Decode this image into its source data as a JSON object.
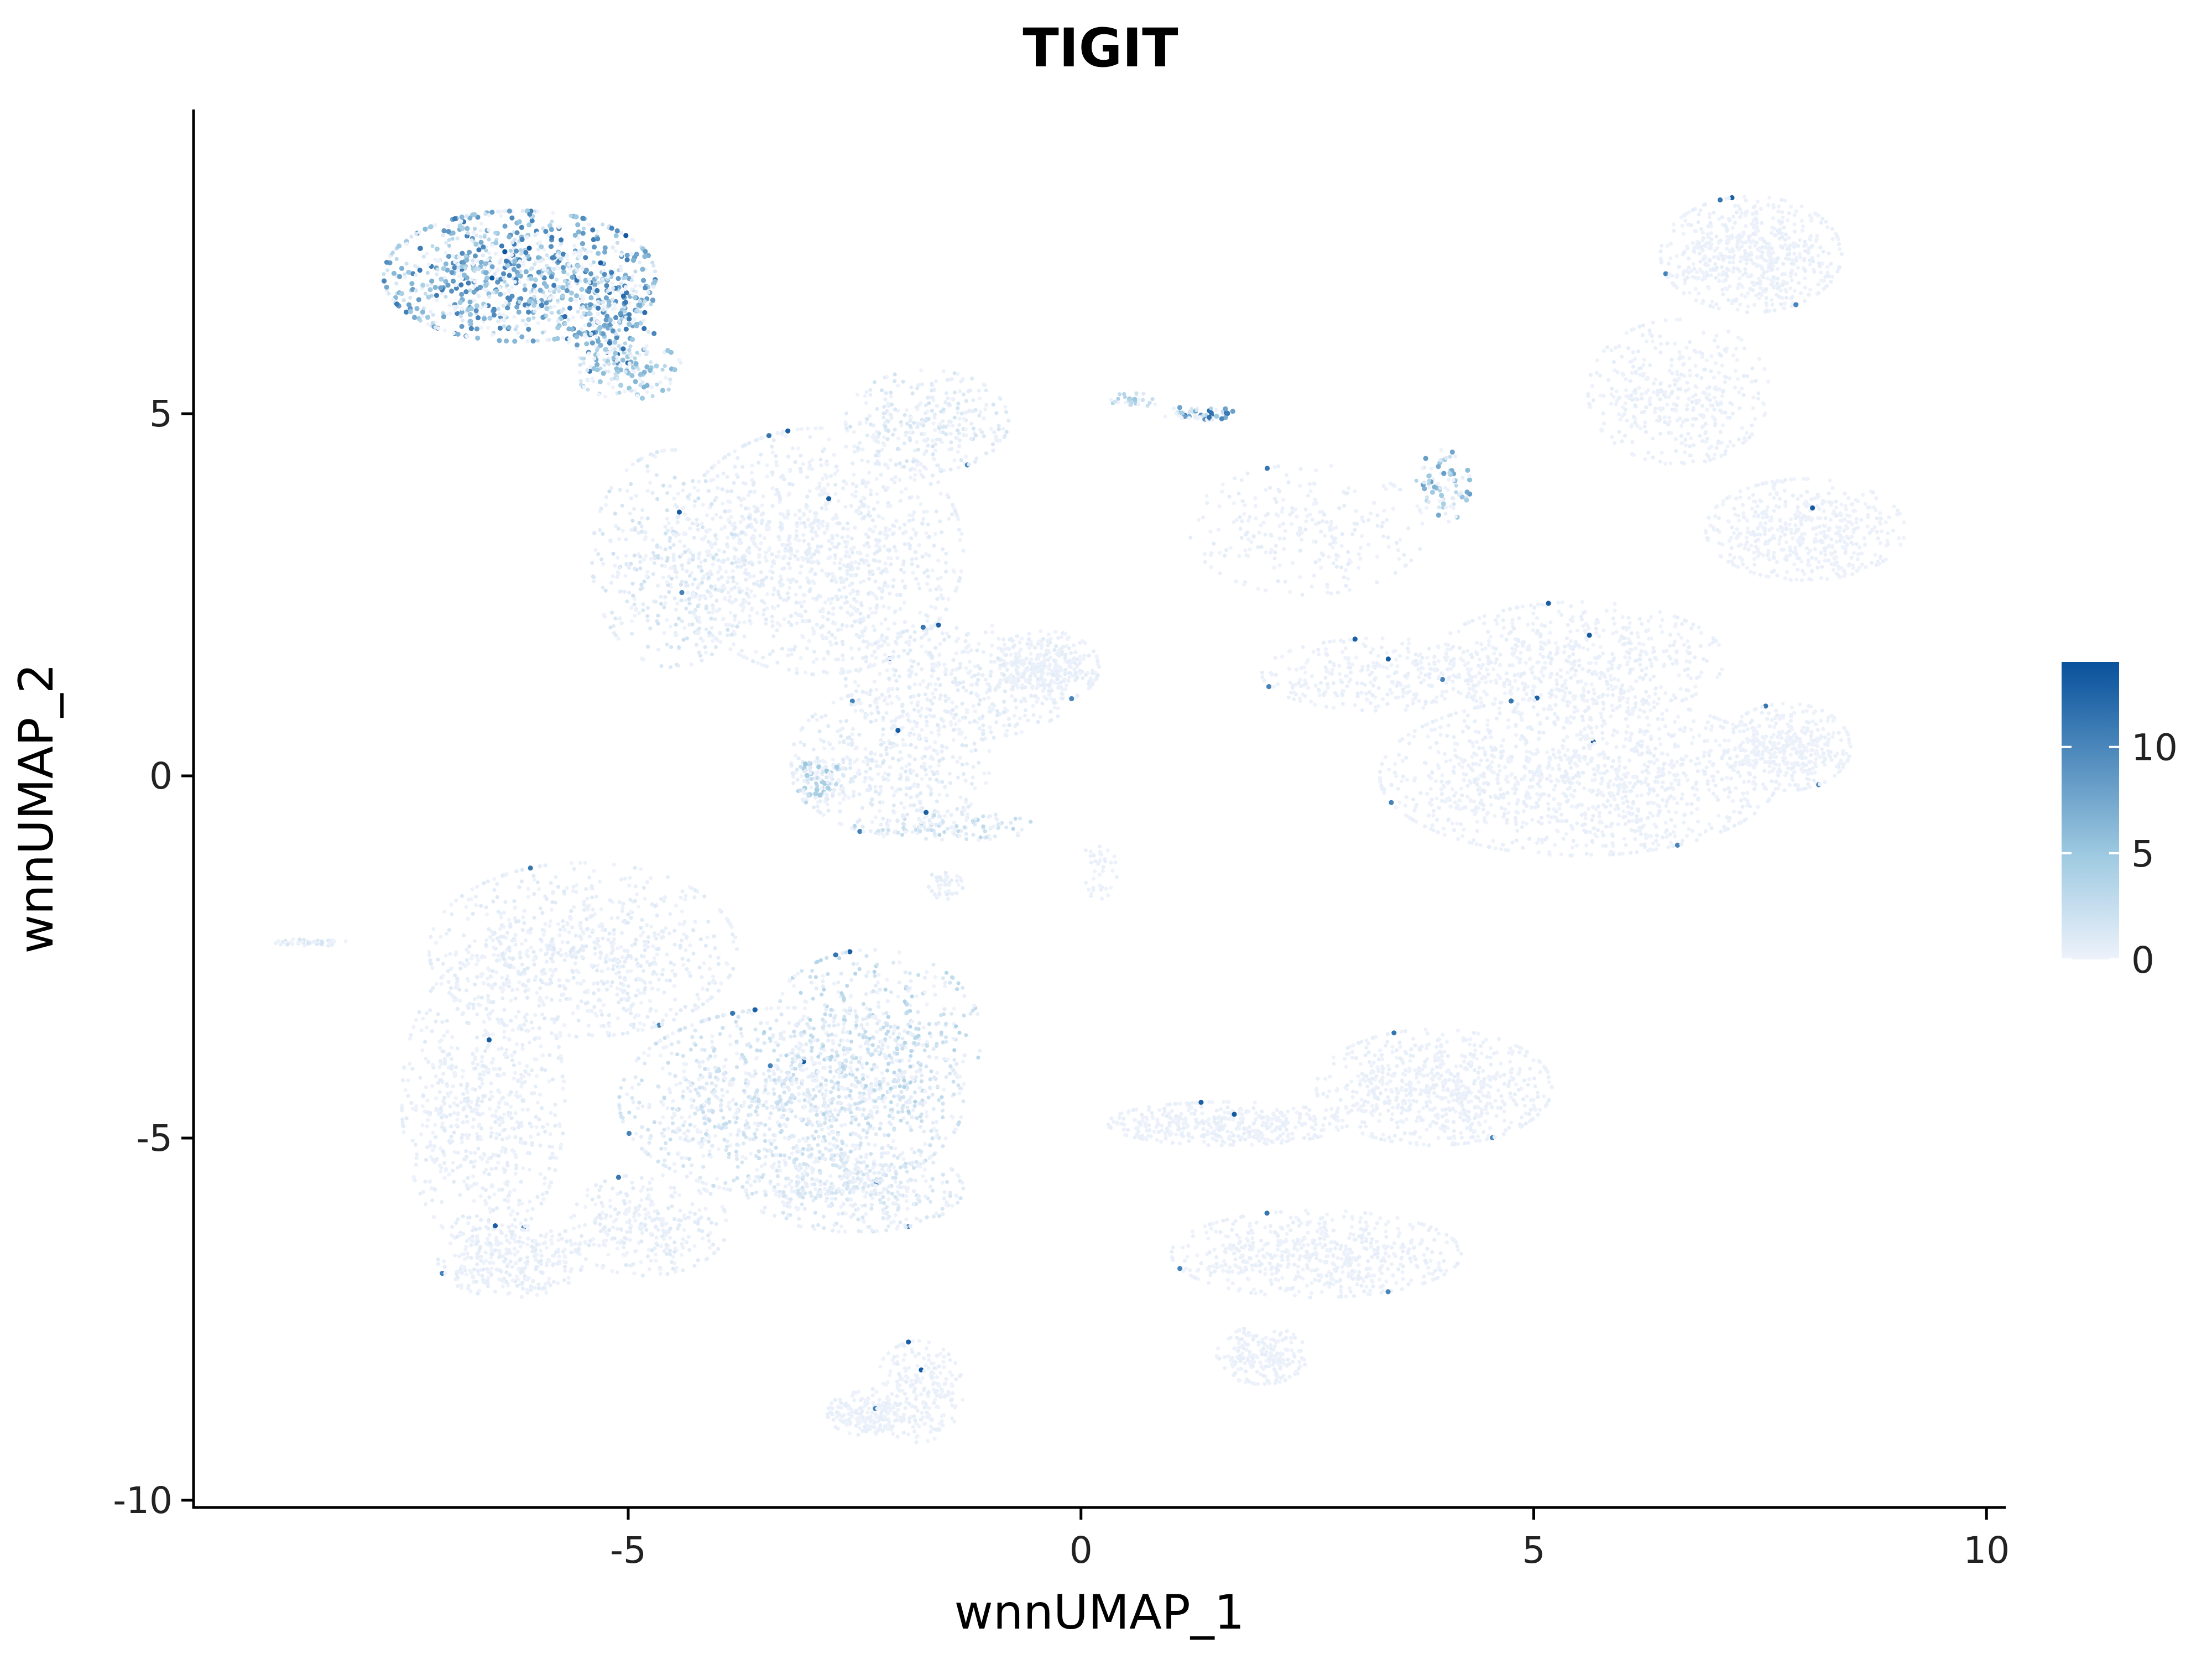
{
  "chart_data": {
    "type": "scatter",
    "title": "TIGIT",
    "xlabel": "wnnUMAP_1",
    "ylabel": "wnnUMAP_2",
    "xlim": [
      -9.8,
      10.2
    ],
    "ylim": [
      -10.1,
      9.2
    ],
    "x_ticks": [
      -5,
      0,
      5,
      10
    ],
    "y_ticks": [
      5,
      0,
      -5,
      -10
    ],
    "x_tick_labels": [
      "-5",
      "0",
      "5",
      "10"
    ],
    "y_tick_labels": [
      "5",
      "0",
      "-5",
      "-10"
    ],
    "grid": false,
    "legend_position": "right",
    "color_scale": {
      "low_color": "#eef2fb",
      "mid_color": "#9ecae1",
      "high_color": "#08519c",
      "min": 0,
      "max": 14,
      "ticks": [
        0,
        5,
        10
      ],
      "tick_labels": [
        "0",
        "5",
        "10"
      ]
    },
    "clusters": [
      {
        "cx": -6.2,
        "cy": 6.9,
        "rx": 1.5,
        "ry": 0.9,
        "value": 6.5,
        "n": 900
      },
      {
        "cx": -5.2,
        "cy": 6.3,
        "rx": 0.5,
        "ry": 0.8,
        "value": 7.0,
        "n": 220
      },
      {
        "cx": -5.0,
        "cy": 5.6,
        "rx": 0.6,
        "ry": 0.4,
        "value": 4.0,
        "n": 120
      },
      {
        "cx": -2.9,
        "cy": 3.1,
        "rx": 1.6,
        "ry": 1.7,
        "value": 0.5,
        "n": 1300
      },
      {
        "cx": -1.7,
        "cy": 4.9,
        "rx": 0.9,
        "ry": 0.7,
        "value": 1.0,
        "n": 300
      },
      {
        "cx": -4.5,
        "cy": 3.0,
        "rx": 0.9,
        "ry": 1.5,
        "value": 1.2,
        "n": 400
      },
      {
        "cx": -1.3,
        "cy": 1.3,
        "rx": 1.3,
        "ry": 0.8,
        "value": 0.6,
        "n": 400
      },
      {
        "cx": -0.4,
        "cy": 1.5,
        "rx": 0.6,
        "ry": 0.5,
        "value": 0.4,
        "n": 300
      },
      {
        "cx": -2.1,
        "cy": 0.2,
        "rx": 1.1,
        "ry": 1.0,
        "value": 0.7,
        "n": 450
      },
      {
        "cx": -2.9,
        "cy": -0.1,
        "rx": 0.3,
        "ry": 0.3,
        "value": 3.0,
        "n": 90
      },
      {
        "cx": -1.5,
        "cy": -0.7,
        "rx": 1.0,
        "ry": 0.2,
        "value": 2.0,
        "n": 120
      },
      {
        "cx": -1.5,
        "cy": -1.5,
        "rx": 0.2,
        "ry": 0.2,
        "value": 0.5,
        "n": 40
      },
      {
        "cx": 1.3,
        "cy": 5.0,
        "rx": 0.4,
        "ry": 0.1,
        "value": 7.0,
        "n": 50
      },
      {
        "cx": 0.6,
        "cy": 5.2,
        "rx": 0.3,
        "ry": 0.1,
        "value": 3.0,
        "n": 30
      },
      {
        "cx": 2.5,
        "cy": 3.4,
        "rx": 1.3,
        "ry": 0.9,
        "value": 0.4,
        "n": 250
      },
      {
        "cx": 4.0,
        "cy": 4.0,
        "rx": 0.3,
        "ry": 0.5,
        "value": 5.0,
        "n": 80
      },
      {
        "cx": 5.5,
        "cy": 0.0,
        "rx": 2.2,
        "ry": 1.1,
        "value": 0.3,
        "n": 1500
      },
      {
        "cx": 5.5,
        "cy": 1.6,
        "rx": 1.6,
        "ry": 0.8,
        "value": 0.3,
        "n": 600
      },
      {
        "cx": 7.8,
        "cy": 0.4,
        "rx": 0.7,
        "ry": 0.6,
        "value": 0.2,
        "n": 400
      },
      {
        "cx": 8.0,
        "cy": 3.4,
        "rx": 1.1,
        "ry": 0.7,
        "value": 0.2,
        "n": 500
      },
      {
        "cx": 7.4,
        "cy": 7.2,
        "rx": 1.0,
        "ry": 0.8,
        "value": 0.3,
        "n": 600
      },
      {
        "cx": 6.6,
        "cy": 5.3,
        "rx": 1.0,
        "ry": 1.0,
        "value": 0.3,
        "n": 400
      },
      {
        "cx": 3.3,
        "cy": 1.4,
        "rx": 1.3,
        "ry": 0.5,
        "value": 0.3,
        "n": 300
      },
      {
        "cx": 0.2,
        "cy": -1.3,
        "rx": 0.2,
        "ry": 0.4,
        "value": 0.2,
        "n": 40
      },
      {
        "cx": -5.5,
        "cy": -2.4,
        "rx": 1.7,
        "ry": 1.2,
        "value": 0.6,
        "n": 800
      },
      {
        "cx": -3.2,
        "cy": -4.5,
        "rx": 1.9,
        "ry": 1.3,
        "value": 1.5,
        "n": 1300
      },
      {
        "cx": -2.3,
        "cy": -3.6,
        "rx": 1.2,
        "ry": 1.2,
        "value": 2.2,
        "n": 500
      },
      {
        "cx": -6.6,
        "cy": -4.5,
        "rx": 0.9,
        "ry": 2.0,
        "value": 0.5,
        "n": 700
      },
      {
        "cx": -6.3,
        "cy": -6.7,
        "rx": 0.8,
        "ry": 0.5,
        "value": 0.5,
        "n": 300
      },
      {
        "cx": -4.8,
        "cy": -6.2,
        "rx": 0.9,
        "ry": 0.7,
        "value": 0.6,
        "n": 300
      },
      {
        "cx": -2.5,
        "cy": -5.7,
        "rx": 1.2,
        "ry": 0.6,
        "value": 1.0,
        "n": 400
      },
      {
        "cx": -2.4,
        "cy": -8.8,
        "rx": 0.4,
        "ry": 0.3,
        "value": 0.3,
        "n": 150
      },
      {
        "cx": -1.8,
        "cy": -8.5,
        "rx": 0.5,
        "ry": 0.7,
        "value": 0.3,
        "n": 250
      },
      {
        "cx": 3.9,
        "cy": -4.3,
        "rx": 1.3,
        "ry": 0.8,
        "value": 0.3,
        "n": 700
      },
      {
        "cx": 1.6,
        "cy": -4.8,
        "rx": 1.3,
        "ry": 0.3,
        "value": 0.3,
        "n": 400
      },
      {
        "cx": 2.6,
        "cy": -6.6,
        "rx": 1.6,
        "ry": 0.6,
        "value": 0.3,
        "n": 600
      },
      {
        "cx": 2.0,
        "cy": -8.0,
        "rx": 0.5,
        "ry": 0.4,
        "value": 0.3,
        "n": 200
      },
      {
        "cx": -8.5,
        "cy": -2.3,
        "rx": 0.4,
        "ry": 0.05,
        "value": 1.0,
        "n": 40
      }
    ]
  }
}
